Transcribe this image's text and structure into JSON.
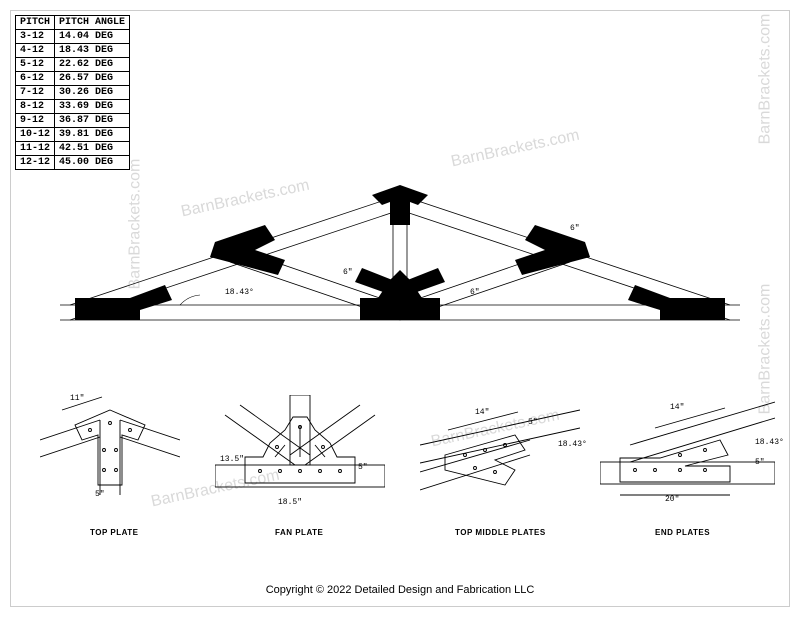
{
  "table": {
    "headers": [
      "PITCH",
      "PITCH ANGLE"
    ],
    "rows": [
      [
        "3-12",
        "14.04 DEG"
      ],
      [
        "4-12",
        "18.43 DEG"
      ],
      [
        "5-12",
        "22.62 DEG"
      ],
      [
        "6-12",
        "26.57 DEG"
      ],
      [
        "7-12",
        "30.26 DEG"
      ],
      [
        "8-12",
        "33.69 DEG"
      ],
      [
        "9-12",
        "36.87 DEG"
      ],
      [
        "10-12",
        "39.81 DEG"
      ],
      [
        "11-12",
        "42.51 DEG"
      ],
      [
        "12-12",
        "45.00 DEG"
      ]
    ]
  },
  "watermark_text": "BarnBrackets.com",
  "copyright": "Copyright © 2022 Detailed Design and Fabrication LLC",
  "truss": {
    "angle_label": "18.43°",
    "beam_6": "6\"",
    "stroke": "#000000",
    "fill": "#000000"
  },
  "plates": {
    "top": {
      "label": "TOP PLATE",
      "dim_11": "11\"",
      "dim_5": "5\""
    },
    "fan": {
      "label": "FAN PLATE",
      "dim_13_5": "13.5\"",
      "dim_5": "5\"",
      "dim_18_5": "18.5\""
    },
    "top_middle": {
      "label": "TOP MIDDLE PLATES",
      "dim_14": "14\"",
      "dim_5": "5\"",
      "dim_18_43": "18.43°"
    },
    "end": {
      "label": "END PLATES",
      "dim_14": "14\"",
      "dim_5": "5\"",
      "dim_20": "20\"",
      "dim_18_43": "18.43°"
    }
  }
}
